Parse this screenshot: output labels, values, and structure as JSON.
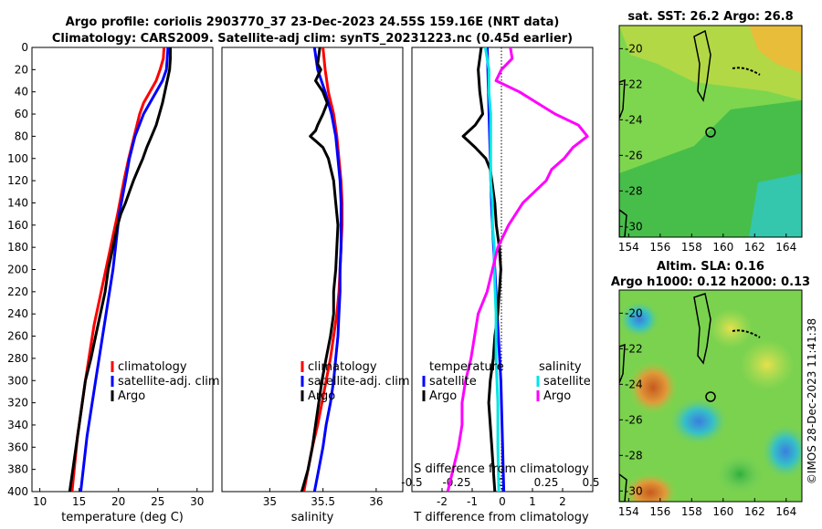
{
  "title_line1": "Argo profile: coriolis 2903770_37 23-Dec-2023 24.55S 159.16E (NRT data)",
  "title_line2": "Climatology: CARS2009. Satellite-adj clim: synTS_20231223.nc (0.45d earlier)",
  "map_sst_title": "sat. SST: 26.2 Argo: 26.8",
  "map_sla_title1": "Altim. SLA: 0.16",
  "map_sla_title2": "Argo h1000: 0.12 h2000: 0.13",
  "timestamp": "©IMOS 28-Dec-2023 11:41:38",
  "colors": {
    "climatology": "#ff0000",
    "satellite": "#0000ff",
    "argo": "#000000",
    "t_sat_diff": "#00e5e5",
    "argo_diff": "#ff00ff"
  },
  "chart_data": [
    {
      "type": "line",
      "panel": "temperature",
      "xlabel": "temperature (deg C)",
      "ylabel": "depth",
      "xlim": [
        9,
        32
      ],
      "ylim": [
        400,
        0
      ],
      "xticks": [
        "10",
        "15",
        "20",
        "25",
        "30"
      ],
      "yticks": [
        "0",
        "20",
        "40",
        "60",
        "80",
        "100",
        "120",
        "140",
        "160",
        "180",
        "200",
        "220",
        "240",
        "260",
        "280",
        "300",
        "320",
        "340",
        "360",
        "380",
        "400"
      ],
      "legend": [
        "climatology",
        "satellite-adj. clim",
        "Argo"
      ],
      "series": [
        {
          "name": "climatology",
          "depth": [
            0,
            10,
            20,
            30,
            40,
            50,
            60,
            80,
            100,
            120,
            150,
            200,
            250,
            300,
            350,
            400
          ],
          "values": [
            25.8,
            25.7,
            25.3,
            24.8,
            24,
            23.2,
            22.7,
            22,
            21.3,
            20.7,
            19.9,
            18.4,
            16.9,
            15.8,
            14.8,
            14.1
          ]
        },
        {
          "name": "satellite-adj. clim",
          "depth": [
            0,
            10,
            20,
            30,
            40,
            50,
            60,
            80,
            100,
            120,
            150,
            200,
            250,
            300,
            350,
            400
          ],
          "values": [
            26.3,
            26.2,
            26.1,
            25.6,
            24.8,
            24,
            23.2,
            22.1,
            21.4,
            20.9,
            20.1,
            19.3,
            18.2,
            17.1,
            16,
            15.2
          ]
        },
        {
          "name": "Argo",
          "depth": [
            0,
            10,
            20,
            30,
            40,
            50,
            60,
            70,
            80,
            90,
            100,
            110,
            120,
            130,
            140,
            150,
            160,
            180,
            200,
            220,
            240,
            260,
            280,
            300,
            320,
            340,
            360,
            380,
            400
          ],
          "values": [
            26.6,
            26.6,
            26.5,
            26.2,
            25.9,
            25.6,
            25.2,
            24.8,
            24.2,
            23.6,
            23.1,
            22.5,
            21.9,
            21.4,
            20.9,
            20.3,
            19.9,
            19.3,
            18.7,
            18.3,
            17.7,
            17.1,
            16.5,
            15.8,
            15.4,
            15,
            14.6,
            14.2,
            13.8
          ]
        }
      ]
    },
    {
      "type": "line",
      "panel": "salinity",
      "xlabel": "salinity",
      "xlim": [
        34.55,
        36.25
      ],
      "ylim": [
        400,
        0
      ],
      "xticks": [
        "35",
        "35.5",
        "36"
      ],
      "legend": [
        "climatology",
        "satellite-adj. clim",
        "Argo"
      ],
      "series": [
        {
          "name": "climatology",
          "depth": [
            0,
            20,
            40,
            60,
            80,
            100,
            120,
            140,
            160,
            180,
            200,
            220,
            240,
            260,
            280,
            300,
            320,
            340,
            360,
            380,
            400
          ],
          "values": [
            35.5,
            35.52,
            35.55,
            35.6,
            35.63,
            35.65,
            35.67,
            35.68,
            35.68,
            35.67,
            35.66,
            35.65,
            35.63,
            35.6,
            35.57,
            35.53,
            35.49,
            35.45,
            35.4,
            35.36,
            35.32
          ]
        },
        {
          "name": "satellite-adj. clim",
          "depth": [
            0,
            20,
            40,
            60,
            80,
            100,
            120,
            140,
            160,
            180,
            200,
            220,
            240,
            260,
            280,
            300,
            320,
            340,
            360,
            380,
            400
          ],
          "values": [
            35.42,
            35.45,
            35.52,
            35.58,
            35.62,
            35.64,
            35.66,
            35.67,
            35.67,
            35.67,
            35.66,
            35.66,
            35.65,
            35.64,
            35.62,
            35.6,
            35.57,
            35.53,
            35.5,
            35.46,
            35.42
          ]
        },
        {
          "name": "Argo",
          "depth": [
            0,
            15,
            20,
            30,
            40,
            50,
            60,
            70,
            75,
            80,
            85,
            90,
            100,
            120,
            140,
            160,
            180,
            200,
            220,
            240,
            260,
            280,
            300,
            320,
            340,
            360,
            380,
            400
          ],
          "values": [
            35.47,
            35.45,
            35.48,
            35.43,
            35.5,
            35.54,
            35.5,
            35.45,
            35.43,
            35.38,
            35.44,
            35.5,
            35.55,
            35.6,
            35.62,
            35.64,
            35.63,
            35.62,
            35.6,
            35.6,
            35.57,
            35.53,
            35.49,
            35.46,
            35.43,
            35.4,
            35.36,
            35.3
          ]
        }
      ]
    },
    {
      "type": "line",
      "panel": "difference",
      "xlabel": "T difference from climatology",
      "top_axis_label": "S difference from climatology",
      "xlim": [
        -3,
        3
      ],
      "ylim": [
        400,
        0
      ],
      "xticks": [
        "-2",
        "-1",
        "0",
        "1",
        "2"
      ],
      "top_xticks": [
        "-0.5",
        "-0.25",
        "0",
        "0.25",
        "0.5"
      ],
      "legend_temperature": [
        "temperature",
        "satellite",
        "Argo"
      ],
      "legend_salinity": [
        "salinity",
        "satellite",
        "Argo"
      ],
      "series": [
        {
          "name": "T satellite",
          "depth": [
            0,
            50,
            100,
            150,
            200,
            250,
            300,
            350,
            400
          ],
          "values": [
            -0.5,
            -0.45,
            -0.4,
            -0.35,
            -0.25,
            -0.15,
            -0.05,
            0,
            0.05
          ]
        },
        {
          "name": "T Argo",
          "depth": [
            0,
            10,
            20,
            40,
            60,
            70,
            80,
            90,
            100,
            110,
            120,
            140,
            160,
            180,
            200,
            240,
            260,
            280,
            300,
            320,
            340,
            360,
            380,
            400
          ],
          "values": [
            -0.7,
            -0.75,
            -0.8,
            -0.75,
            -0.65,
            -0.9,
            -1.3,
            -0.9,
            -0.55,
            -0.4,
            -0.35,
            -0.25,
            -0.2,
            -0.1,
            -0.05,
            -0.15,
            -0.25,
            -0.3,
            -0.4,
            -0.45,
            -0.4,
            -0.35,
            -0.3,
            -0.25
          ]
        },
        {
          "name": "S satellite",
          "depth": [
            0,
            20,
            40,
            60,
            80,
            100,
            120,
            140,
            160,
            180,
            200,
            240,
            280,
            320,
            360,
            400
          ],
          "values": [
            -0.09,
            -0.07,
            -0.07,
            -0.06,
            -0.06,
            -0.06,
            -0.06,
            -0.05,
            -0.05,
            -0.04,
            -0.04,
            -0.03,
            -0.03,
            -0.02,
            -0.02,
            -0.015
          ]
        },
        {
          "name": "S Argo",
          "depth": [
            0,
            10,
            20,
            30,
            40,
            50,
            60,
            70,
            80,
            90,
            100,
            110,
            120,
            140,
            160,
            180,
            200,
            220,
            240,
            260,
            280,
            300,
            320,
            340,
            360,
            380,
            400
          ],
          "values": [
            0.05,
            0.06,
            0.0,
            -0.03,
            0.1,
            0.2,
            0.3,
            0.43,
            0.48,
            0.4,
            0.35,
            0.28,
            0.25,
            0.12,
            0.04,
            -0.02,
            -0.05,
            -0.08,
            -0.13,
            -0.15,
            -0.17,
            -0.2,
            -0.22,
            -0.22,
            -0.24,
            -0.27,
            -0.3
          ]
        }
      ]
    },
    {
      "type": "heatmap",
      "panel": "satellite SST map",
      "title": "sat. SST: 26.2 Argo: 26.8",
      "xticks": [
        "154",
        "156",
        "158",
        "160",
        "162",
        "164"
      ],
      "yticks": [
        "-20",
        "-22",
        "-24",
        "-26",
        "-28",
        "-30"
      ],
      "xlim": [
        153.4,
        165
      ],
      "ylim": [
        -30.6,
        -18.7
      ],
      "argo_location": [
        159.16,
        -24.55
      ]
    },
    {
      "type": "heatmap",
      "panel": "altimeter SLA map",
      "title": "Altim. SLA: 0.16 / Argo h1000: 0.12 h2000: 0.13",
      "xticks": [
        "154",
        "156",
        "158",
        "160",
        "162",
        "164"
      ],
      "yticks": [
        "-20",
        "-22",
        "-24",
        "-26",
        "-28",
        "-30"
      ],
      "xlim": [
        153.4,
        165
      ],
      "ylim": [
        -30.6,
        -18.7
      ],
      "argo_location": [
        159.16,
        -24.55
      ]
    }
  ]
}
